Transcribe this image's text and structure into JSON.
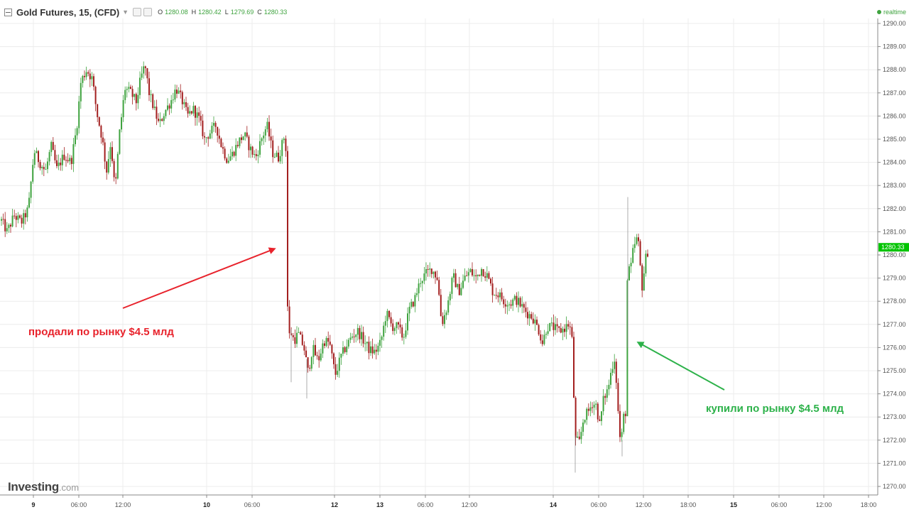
{
  "header": {
    "title": "Gold Futures, 15, (CFD)",
    "ohlc": [
      {
        "key": "O",
        "value": "1280.08"
      },
      {
        "key": "H",
        "value": "1280.42"
      },
      {
        "key": "L",
        "value": "1279.69"
      },
      {
        "key": "C",
        "value": "1280.33"
      }
    ],
    "realtime_label": "realtime"
  },
  "logo": {
    "main": "Investing",
    "suffix": ".com"
  },
  "colors": {
    "up": "#3fa33f",
    "down": "#a31f1f",
    "grid": "#ececec",
    "annotation_sell": "#e8232c",
    "annotation_buy": "#2db24a",
    "last_price_bg": "#00c400"
  },
  "chart_data": {
    "type": "candlestick",
    "ylim": [
      1269.8,
      1290.5
    ],
    "y_ticks": [
      "1290.00",
      "1289.00",
      "1288.00",
      "1287.00",
      "1286.00",
      "1285.00",
      "1284.00",
      "1283.00",
      "1282.00",
      "1281.00",
      "1280.00",
      "1279.00",
      "1278.00",
      "1277.00",
      "1276.00",
      "1275.00",
      "1274.00",
      "1273.00",
      "1272.00",
      "1271.00",
      "1270.00"
    ],
    "x_ticks": [
      {
        "label": "9",
        "bold": true
      },
      {
        "label": "06:00",
        "bold": false
      },
      {
        "label": "12:00",
        "bold": false
      },
      {
        "label": "10",
        "bold": true
      },
      {
        "label": "06:00",
        "bold": false
      },
      {
        "label": "12",
        "bold": true
      },
      {
        "label": "13",
        "bold": true
      },
      {
        "label": "06:00",
        "bold": false
      },
      {
        "label": "12:00",
        "bold": false
      },
      {
        "label": "14",
        "bold": true
      },
      {
        "label": "06:00",
        "bold": false
      },
      {
        "label": "12:00",
        "bold": false
      },
      {
        "label": "18:00",
        "bold": false
      },
      {
        "label": "15",
        "bold": true
      },
      {
        "label": "06:00",
        "bold": false
      },
      {
        "label": "12:00",
        "bold": false
      },
      {
        "label": "18:00",
        "bold": false
      }
    ],
    "last_price": "1280.33",
    "price_path": [
      [
        0,
        1281.6
      ],
      [
        10,
        1281.0
      ],
      [
        20,
        1281.7
      ],
      [
        30,
        1281.4
      ],
      [
        40,
        1282.0
      ],
      [
        48,
        1284.5
      ],
      [
        56,
        1284.0
      ],
      [
        64,
        1283.6
      ],
      [
        72,
        1284.7
      ],
      [
        80,
        1283.7
      ],
      [
        90,
        1284.3
      ],
      [
        100,
        1284.0
      ],
      [
        108,
        1285.5
      ],
      [
        114,
        1287.5
      ],
      [
        122,
        1288.0
      ],
      [
        130,
        1287.6
      ],
      [
        136,
        1286.2
      ],
      [
        144,
        1285.0
      ],
      [
        150,
        1283.6
      ],
      [
        156,
        1284.9
      ],
      [
        162,
        1282.7
      ],
      [
        168,
        1285.2
      ],
      [
        176,
        1287.2
      ],
      [
        184,
        1287.0
      ],
      [
        192,
        1286.6
      ],
      [
        198,
        1287.6
      ],
      [
        204,
        1288.2
      ],
      [
        210,
        1287.0
      ],
      [
        216,
        1286.4
      ],
      [
        224,
        1285.6
      ],
      [
        232,
        1286.2
      ],
      [
        240,
        1286.6
      ],
      [
        248,
        1287.2
      ],
      [
        256,
        1286.7
      ],
      [
        264,
        1286.0
      ],
      [
        272,
        1286.3
      ],
      [
        280,
        1285.9
      ],
      [
        288,
        1285.0
      ],
      [
        296,
        1285.3
      ],
      [
        304,
        1285.6
      ],
      [
        312,
        1284.7
      ],
      [
        320,
        1284.1
      ],
      [
        328,
        1284.4
      ],
      [
        336,
        1284.9
      ],
      [
        344,
        1285.2
      ],
      [
        352,
        1284.6
      ],
      [
        360,
        1284.2
      ],
      [
        368,
        1285.0
      ],
      [
        376,
        1285.6
      ],
      [
        384,
        1284.4
      ],
      [
        392,
        1284.2
      ],
      [
        400,
        1285.1
      ],
      [
        405,
        1284.1
      ],
      [
        408,
        1276.8
      ],
      [
        414,
        1276.3
      ],
      [
        420,
        1276.6
      ],
      [
        428,
        1276.0
      ],
      [
        434,
        1274.9
      ],
      [
        440,
        1276.0
      ],
      [
        448,
        1275.4
      ],
      [
        456,
        1276.3
      ],
      [
        464,
        1276.2
      ],
      [
        472,
        1274.8
      ],
      [
        480,
        1275.6
      ],
      [
        488,
        1276.1
      ],
      [
        496,
        1276.5
      ],
      [
        504,
        1276.7
      ],
      [
        512,
        1276.3
      ],
      [
        520,
        1275.9
      ],
      [
        528,
        1275.8
      ],
      [
        536,
        1276.2
      ],
      [
        544,
        1277.5
      ],
      [
        552,
        1276.9
      ],
      [
        560,
        1276.9
      ],
      [
        568,
        1276.4
      ],
      [
        576,
        1277.6
      ],
      [
        584,
        1278.1
      ],
      [
        592,
        1278.9
      ],
      [
        600,
        1279.2
      ],
      [
        608,
        1279.4
      ],
      [
        616,
        1279.0
      ],
      [
        622,
        1277.0
      ],
      [
        630,
        1277.8
      ],
      [
        638,
        1279.1
      ],
      [
        646,
        1278.4
      ],
      [
        654,
        1279.0
      ],
      [
        662,
        1279.3
      ],
      [
        670,
        1279.0
      ],
      [
        678,
        1279.4
      ],
      [
        686,
        1279.1
      ],
      [
        694,
        1278.4
      ],
      [
        702,
        1278.3
      ],
      [
        710,
        1278.0
      ],
      [
        718,
        1277.9
      ],
      [
        726,
        1278.1
      ],
      [
        734,
        1277.8
      ],
      [
        742,
        1277.5
      ],
      [
        750,
        1277.3
      ],
      [
        758,
        1276.8
      ],
      [
        764,
        1276.2
      ],
      [
        770,
        1276.9
      ],
      [
        778,
        1276.9
      ],
      [
        786,
        1276.7
      ],
      [
        794,
        1276.8
      ],
      [
        800,
        1277.0
      ],
      [
        805,
        1276.7
      ],
      [
        810,
        1272.0
      ],
      [
        816,
        1271.9
      ],
      [
        822,
        1273.0
      ],
      [
        828,
        1273.2
      ],
      [
        834,
        1273.6
      ],
      [
        840,
        1273.5
      ],
      [
        844,
        1272.6
      ],
      [
        850,
        1273.8
      ],
      [
        856,
        1274.2
      ],
      [
        862,
        1275.2
      ],
      [
        866,
        1275.6
      ],
      [
        870,
        1273.4
      ],
      [
        874,
        1271.7
      ],
      [
        878,
        1273.0
      ],
      [
        882,
        1273.3
      ],
      [
        886,
        1278.9
      ],
      [
        892,
        1280.3
      ],
      [
        898,
        1280.8
      ],
      [
        904,
        1278.6
      ],
      [
        910,
        1280.0
      ],
      [
        914,
        1280.3
      ]
    ],
    "annotations": [
      {
        "text": "продали по рынку $4.5 млд",
        "color": "sell"
      },
      {
        "text": "купили по рынку $4.5 млд",
        "color": "buy"
      }
    ]
  }
}
